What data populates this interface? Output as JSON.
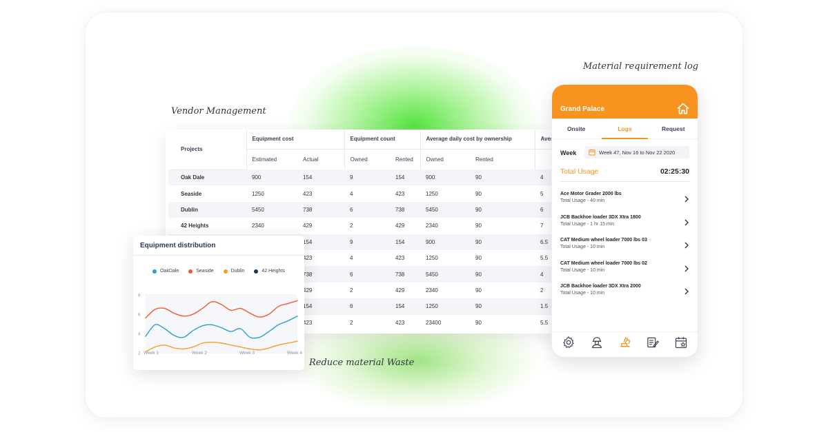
{
  "captions": {
    "vendor": "Vendor Management",
    "material_log": "Material requirement log",
    "reduce_waste": "Reduce material Waste"
  },
  "vendor_table": {
    "projects_header": "Projects",
    "groups": [
      "Equipment cost",
      "Equipment count",
      "Average daily cost by ownership",
      "Average hours"
    ],
    "subheaders": [
      "Estimated",
      "Actual",
      "Owned",
      "Rented",
      "Owned",
      "Rented"
    ],
    "rows": [
      {
        "project": "Oak Dale",
        "cells": [
          "900",
          "154",
          "9",
          "154",
          "900",
          "90",
          "4"
        ]
      },
      {
        "project": "Seaside",
        "cells": [
          "1250",
          "423",
          "4",
          "423",
          "1250",
          "90",
          "5"
        ]
      },
      {
        "project": "Dublin",
        "cells": [
          "5450",
          "738",
          "6",
          "738",
          "5450",
          "90",
          "6"
        ]
      },
      {
        "project": "42 Heights",
        "cells": [
          "2340",
          "429",
          "2",
          "429",
          "2340",
          "90",
          "7"
        ]
      },
      {
        "project": "",
        "cells": [
          "",
          "154",
          "9",
          "154",
          "900",
          "90",
          "6.5"
        ]
      },
      {
        "project": "",
        "cells": [
          "",
          "423",
          "4",
          "423",
          "1250",
          "90",
          "5.5"
        ]
      },
      {
        "project": "",
        "cells": [
          "",
          "738",
          "6",
          "738",
          "5450",
          "90",
          "4"
        ]
      },
      {
        "project": "",
        "cells": [
          "",
          "429",
          "2",
          "429",
          "2340",
          "90",
          "2"
        ]
      },
      {
        "project": "",
        "cells": [
          "",
          "154",
          "6",
          "154",
          "1250",
          "90",
          "1.5"
        ]
      },
      {
        "project": "",
        "cells": [
          "",
          "423",
          "2",
          "423",
          "23400",
          "90",
          "5.5"
        ]
      }
    ]
  },
  "equipment_chart": {
    "title": "Equipment distribution",
    "chart_data": {
      "type": "line",
      "x": [
        "Week 1",
        "Week 2",
        "Week 3",
        "Week 4"
      ],
      "x_ticks": [
        "Week 1",
        "Week 2",
        "Week 3",
        "Week 4"
      ],
      "y_ticks": [
        "8",
        "6",
        "4",
        "2"
      ],
      "ylim": [
        1,
        9
      ],
      "grid": true,
      "legend_position": "top",
      "series": [
        {
          "name": "OakDale",
          "color": "#2a9fc9",
          "x": [
            1,
            1.4,
            1.8,
            2.2,
            2.6,
            3.0,
            3.4,
            3.8,
            4.2,
            4.6,
            5.0,
            5.4,
            5.8,
            6.2,
            6.6,
            7.0,
            7.4
          ],
          "values": [
            3.7,
            4.9,
            4.5,
            3.8,
            3.6,
            4.3,
            4.8,
            4.9,
            4.6,
            4.2,
            4.5,
            3.6,
            3.6,
            4.2,
            4.9,
            5.3,
            5.8
          ]
        },
        {
          "name": "Seaside",
          "color": "#f05a28",
          "x": [
            1,
            1.4,
            1.8,
            2.2,
            2.6,
            3.0,
            3.4,
            3.8,
            4.2,
            4.6,
            5.0,
            5.4,
            5.8,
            6.2,
            6.6,
            7.0,
            7.4
          ],
          "values": [
            5.6,
            6.5,
            6.6,
            6.1,
            5.8,
            6.0,
            6.6,
            7.3,
            7.0,
            6.4,
            6.6,
            6.1,
            5.7,
            6.0,
            6.8,
            7.1,
            7.4
          ]
        },
        {
          "name": "Dublin",
          "color": "#f59d25",
          "x": [
            1,
            1.4,
            1.8,
            2.2,
            2.6,
            3.0,
            3.4,
            3.8,
            4.2,
            4.6,
            5.0,
            5.4,
            5.8,
            6.2,
            6.6,
            7.0,
            7.4
          ],
          "values": [
            2.1,
            2.6,
            2.8,
            2.5,
            2.4,
            2.6,
            3.0,
            3.1,
            3.0,
            2.8,
            2.6,
            2.4,
            2.3,
            2.5,
            2.8,
            3.0,
            3.2
          ]
        },
        {
          "name": "42 Heights",
          "color": "#1f2f55",
          "x": [],
          "values": []
        }
      ]
    }
  },
  "phone": {
    "title": "Grand Palace",
    "tabs": [
      "Onsite",
      "Logs",
      "Request"
    ],
    "active_tab": "Logs",
    "week_label": "Week",
    "week_range": "Week 47, Nov 16 to Nov 22 2020",
    "total_usage_label": "Total Usage",
    "total_usage_value": "02:25:30",
    "accent_color": "#f7931e",
    "items": [
      {
        "name": "Ace Motor Grader 2000 lbs",
        "usage": "Total Usage - 40 min"
      },
      {
        "name": "JCB Backhoe loader 3DX Xtra 1800",
        "usage": "Total Usage - 1 hr 15 min"
      },
      {
        "name": "CAT Medium wheel loader 7000 lbs 03",
        "usage": "Total Usage - 10 min"
      },
      {
        "name": "CAT Medium wheel loader 7000 lbs 02",
        "usage": "Total Usage - 10 min"
      },
      {
        "name": "JCB Backhoe loader 3DX Xtra 2000",
        "usage": "Total Usage - 10 min"
      }
    ],
    "nav_icons": [
      "gear-icon",
      "worker-icon",
      "excavator-icon",
      "notes-icon",
      "calendar-star-icon"
    ],
    "active_nav": "excavator-icon"
  }
}
